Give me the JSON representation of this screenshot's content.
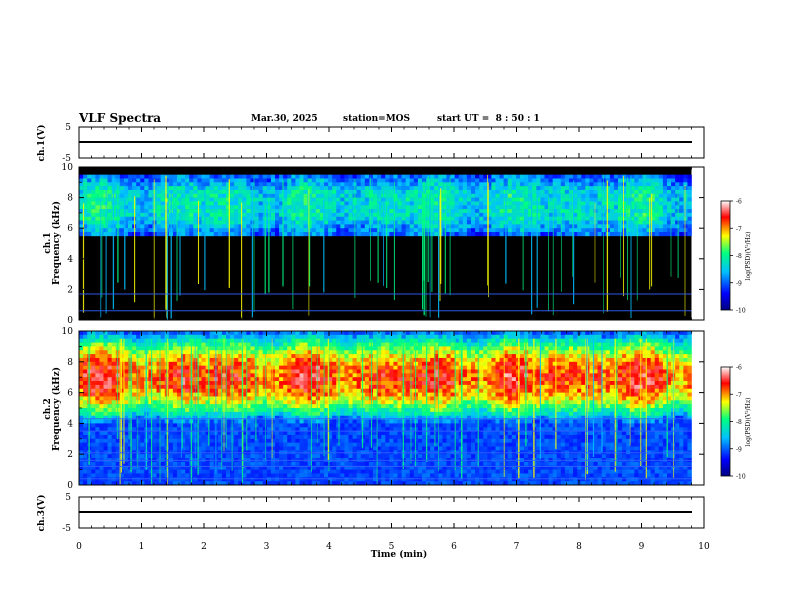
{
  "header": {
    "title": "VLF Spectra",
    "date": "Mar.30, 2025",
    "station": "station=MOS",
    "start_ut": "start UT =  8 : 50 : 1"
  },
  "panels": {
    "ch1_waveform": {
      "label": "ch.1(V)",
      "ticks": [
        "5",
        "-5"
      ]
    },
    "ch1_spectrum": {
      "label_line1": "ch.1",
      "label_line2": "Frequency (kHz)",
      "ticks": [
        "0",
        "2",
        "4",
        "6",
        "8",
        "10"
      ]
    },
    "ch2_spectrum": {
      "label_line1": "ch.2",
      "label_line2": "Frequency (kHz)",
      "ticks": [
        "0",
        "2",
        "4",
        "6",
        "8",
        "10"
      ]
    },
    "ch3_waveform": {
      "label": "ch.3(V)",
      "ticks": [
        "5",
        "-5"
      ]
    }
  },
  "x_axis": {
    "label": "Time (min)",
    "ticks": [
      "0",
      "1",
      "2",
      "3",
      "4",
      "5",
      "6",
      "7",
      "8",
      "9",
      "10"
    ]
  },
  "colorbar": {
    "label": "log(PSD)(V²/Hz)",
    "ticks": [
      "-6",
      "-7",
      "-8",
      "-9",
      "-10"
    ]
  },
  "chart_data": {
    "type": "heatmap",
    "title": "VLF Spectra",
    "xlabel": "Time (min)",
    "xlim": [
      0,
      10
    ],
    "data_end_min": 9.8,
    "color_scale": {
      "label": "log(PSD)(V²/Hz)",
      "range": [
        -10,
        -6
      ],
      "colors": [
        "#000080",
        "#0000ff",
        "#00c0ff",
        "#00ff80",
        "#ffff00",
        "#ff0000",
        "#ffffff"
      ]
    },
    "series": [
      {
        "name": "ch.1(V)",
        "type": "waveform",
        "ylim": [
          -5,
          5
        ],
        "value": -1.8
      },
      {
        "name": "ch.1",
        "type": "spectrogram",
        "ylabel": "Frequency (kHz)",
        "ylim": [
          0,
          10
        ],
        "band_khz": [
          5.5,
          9.5
        ],
        "band_peak_log_psd": -8.2,
        "narrowband_lines_khz": [
          1.7,
          0.6
        ],
        "background_log_psd": -10
      },
      {
        "name": "ch.2",
        "type": "spectrogram",
        "ylabel": "Frequency (kHz)",
        "ylim": [
          0,
          10
        ],
        "band_khz": [
          4.5,
          10
        ],
        "band_center_khz": 7,
        "band_peak_log_psd": -6.8,
        "narrowband_lines_khz": [
          4.3,
          3.5,
          2.1,
          1.6,
          1.2,
          0.4
        ],
        "background_log_psd": -9.3
      },
      {
        "name": "ch.3(V)",
        "type": "waveform",
        "ylim": [
          -5,
          5
        ],
        "value": -1.8
      }
    ]
  }
}
